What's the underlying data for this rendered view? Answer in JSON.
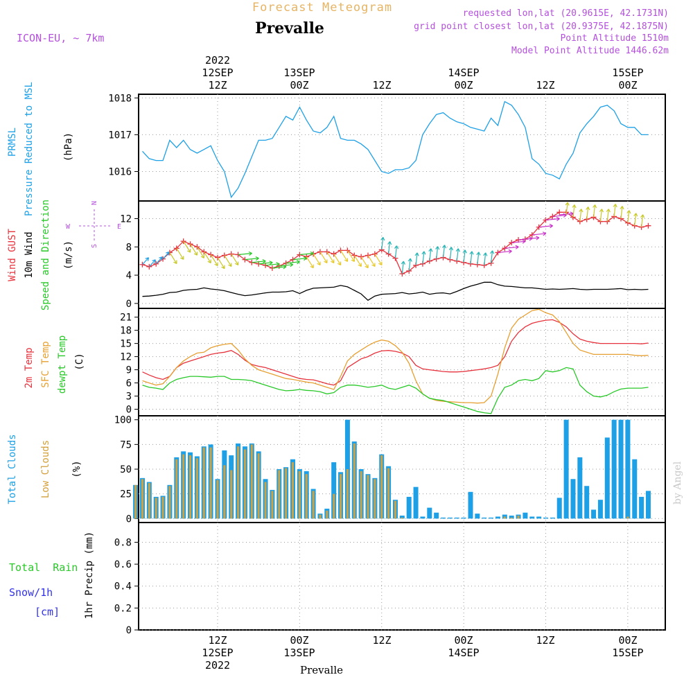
{
  "header": {
    "forecast_title": "Forecast Meteogram",
    "location": "Prevalle",
    "model": "ICON-EU, ~ 7km",
    "requested": "requested lon,lat (20.9615E, 42.1731N)",
    "grid_point": "grid point closest lon,lat (20.9375E, 42.1875N)",
    "point_altitude": "Point Altitude 1510m",
    "model_altitude": "Model Point Altitude 1446.62m"
  },
  "footer": {
    "location": "Prevalle",
    "credit": "by Angel"
  },
  "time_axis": {
    "top_labels": [
      {
        "h": 12,
        "lines": [
          "2022",
          "12SEP",
          "12Z"
        ]
      },
      {
        "h": 24,
        "lines": [
          "13SEP",
          "00Z"
        ]
      },
      {
        "h": 36,
        "lines": [
          "12Z"
        ]
      },
      {
        "h": 48,
        "lines": [
          "14SEP",
          "00Z"
        ]
      },
      {
        "h": 60,
        "lines": [
          "12Z"
        ]
      },
      {
        "h": 72,
        "lines": [
          "15SEP",
          "00Z"
        ]
      }
    ],
    "bottom_labels": [
      {
        "h": 12,
        "lines": [
          "12Z",
          "12SEP",
          "2022"
        ]
      },
      {
        "h": 24,
        "lines": [
          "00Z",
          "13SEP"
        ]
      },
      {
        "h": 36,
        "lines": [
          "12Z"
        ]
      },
      {
        "h": 48,
        "lines": [
          "00Z",
          "14SEP"
        ]
      },
      {
        "h": 60,
        "lines": [
          "12Z"
        ]
      },
      {
        "h": 72,
        "lines": [
          "00Z",
          "15SEP"
        ]
      }
    ]
  },
  "colors": {
    "pressure": "#1ea0e6",
    "gust": "#e6323c",
    "wind": "#000000",
    "temp2m": "#e6323c",
    "sfc": "#e6a032",
    "dewpt": "#28c828",
    "total_cloud": "#1ea0e6",
    "low_cloud": "#d2a03c",
    "rain": "#28c828",
    "snow": "#3232e6",
    "header_purple": "#b450dc",
    "header_orange": "#e6b464"
  },
  "chart_data": [
    {
      "type": "line",
      "panel": "pressure",
      "ylabels": [
        {
          "text": "PRMSL",
          "color": "pressure"
        },
        {
          "text": "Pressure Reduced to MSL",
          "color": "pressure"
        }
      ],
      "unit": "(hPa)",
      "ylim": [
        1015.2,
        1018.1
      ],
      "yticks": [
        1016,
        1017,
        1018
      ],
      "x_start": 1,
      "x_step": 1,
      "series": [
        {
          "color": "pressure",
          "values": [
            1016.55,
            1016.35,
            1016.3,
            1016.3,
            1016.85,
            1016.65,
            1016.85,
            1016.6,
            1016.5,
            1016.6,
            1016.7,
            1016.3,
            1016.0,
            1015.3,
            1015.55,
            1015.95,
            1016.4,
            1016.85,
            1016.85,
            1016.9,
            1017.2,
            1017.5,
            1017.4,
            1017.75,
            1017.4,
            1017.1,
            1017.05,
            1017.2,
            1017.5,
            1016.9,
            1016.85,
            1016.85,
            1016.75,
            1016.6,
            1016.3,
            1016.0,
            1015.95,
            1016.05,
            1016.05,
            1016.1,
            1016.3,
            1017.0,
            1017.3,
            1017.55,
            1017.6,
            1017.45,
            1017.35,
            1017.3,
            1017.2,
            1017.15,
            1017.1,
            1017.45,
            1017.25,
            1017.9,
            1017.8,
            1017.55,
            1017.2,
            1016.35,
            1016.2,
            1015.95,
            1015.9,
            1015.8,
            1016.2,
            1016.5,
            1017.05,
            1017.3,
            1017.5,
            1017.75,
            1017.8,
            1017.65,
            1017.3,
            1017.2,
            1017.2,
            1017.0,
            1017.0
          ]
        }
      ]
    },
    {
      "type": "line",
      "panel": "wind",
      "ylabels": [
        {
          "text": "Wind GUST",
          "color": "gust"
        },
        {
          "text": "10m Wind",
          "color": "wind"
        },
        {
          "text": "Speed and Direction",
          "color": "dewpt"
        }
      ],
      "unit": "(m/s)",
      "compass": [
        "N",
        "W",
        "E",
        "S"
      ],
      "ylim": [
        -0.7,
        14.5
      ],
      "yticks": [
        0,
        4,
        8,
        12
      ],
      "x_start": 1,
      "x_step": 1,
      "series": [
        {
          "name": "Wind GUST",
          "color": "gust",
          "marker": "plus",
          "values": [
            5.5,
            5.2,
            5.6,
            6.3,
            7.2,
            7.8,
            8.8,
            8.4,
            8.0,
            7.3,
            6.9,
            6.5,
            6.8,
            7.0,
            6.9,
            6.2,
            5.8,
            5.6,
            5.4,
            5.0,
            5.3,
            5.7,
            6.2,
            6.9,
            6.6,
            7.0,
            7.3,
            7.3,
            7.0,
            7.5,
            7.5,
            6.8,
            6.6,
            6.8,
            7.0,
            7.6,
            7.0,
            6.4,
            4.2,
            4.6,
            5.4,
            5.6,
            6.0,
            6.3,
            6.5,
            6.2,
            6.0,
            5.8,
            5.6,
            5.5,
            5.4,
            5.7,
            7.2,
            7.8,
            8.6,
            9.0,
            9.1,
            9.7,
            10.8,
            11.8,
            12.3,
            12.9,
            12.9,
            12.2,
            11.6,
            11.9,
            12.2,
            11.6,
            11.6,
            12.3,
            12.0,
            11.4,
            11.0,
            10.8,
            11.0
          ]
        },
        {
          "name": "10m Wind",
          "color": "wind",
          "values": [
            1.0,
            1.05,
            1.15,
            1.3,
            1.55,
            1.6,
            1.85,
            1.95,
            2.0,
            2.2,
            2.05,
            1.95,
            1.8,
            1.55,
            1.3,
            1.1,
            1.2,
            1.35,
            1.5,
            1.6,
            1.6,
            1.65,
            1.8,
            1.4,
            1.85,
            2.15,
            2.2,
            2.25,
            2.3,
            2.55,
            2.35,
            1.85,
            1.35,
            0.45,
            1.05,
            1.3,
            1.35,
            1.4,
            1.55,
            1.35,
            1.45,
            1.6,
            1.3,
            1.45,
            1.5,
            1.35,
            1.7,
            2.1,
            2.45,
            2.7,
            3.0,
            3.0,
            2.65,
            2.45,
            2.4,
            2.3,
            2.2,
            2.2,
            2.1,
            2.0,
            2.05,
            2.0,
            2.05,
            2.1,
            2.0,
            1.95,
            2.0,
            2.0,
            2.0,
            2.05,
            2.1,
            1.95,
            2.0,
            1.95,
            2.0
          ]
        }
      ],
      "arrow_segments": [
        {
          "h1": 1,
          "h2": 4,
          "color": "#1ea0e6",
          "dir": "up-right"
        },
        {
          "h1": 5,
          "h2": 14,
          "color": "#c8c828",
          "dir": "down-right"
        },
        {
          "h1": 15,
          "h2": 24,
          "color": "#28c828",
          "dir": "right"
        },
        {
          "h1": 25,
          "h2": 35,
          "color": "#e6c828",
          "dir": "down-right"
        },
        {
          "h1": 36,
          "h2": 52,
          "color": "#28b4b4",
          "dir": "up"
        },
        {
          "h1": 53,
          "h2": 62,
          "color": "#c832c8",
          "dir": "right"
        },
        {
          "h1": 63,
          "h2": 74,
          "color": "#c8c828",
          "dir": "up"
        }
      ]
    },
    {
      "type": "line",
      "panel": "temperature",
      "ylabels": [
        {
          "text": "2m Temp",
          "color": "temp2m"
        },
        {
          "text": "SFC Temp",
          "color": "sfc"
        },
        {
          "text": "dewpt Temp",
          "color": "dewpt"
        }
      ],
      "unit": "(C)",
      "ylim": [
        -1.5,
        23.0
      ],
      "yticks": [
        0,
        3,
        6,
        9,
        12,
        15,
        18,
        21
      ],
      "x_start": 1,
      "x_step": 1,
      "series": [
        {
          "name": "2m Temp",
          "color": "temp2m",
          "values": [
            8.5,
            7.8,
            7.2,
            6.8,
            7.5,
            9.5,
            10.5,
            11.0,
            11.5,
            12.0,
            12.5,
            12.8,
            13.0,
            13.4,
            12.5,
            11.2,
            10.2,
            9.8,
            9.5,
            9.0,
            8.5,
            8.0,
            7.5,
            7.0,
            6.8,
            6.7,
            6.3,
            5.8,
            5.5,
            6.5,
            9.5,
            10.5,
            11.5,
            12.0,
            12.8,
            13.3,
            13.4,
            13.2,
            12.8,
            12.0,
            10.0,
            9.2,
            9.0,
            8.8,
            8.6,
            8.5,
            8.5,
            8.6,
            8.8,
            9.0,
            9.2,
            9.5,
            10.0,
            12.0,
            15.5,
            17.5,
            18.8,
            19.6,
            20.0,
            20.3,
            20.4,
            19.8,
            18.8,
            17.2,
            16.0,
            15.5,
            15.2,
            15.0,
            15.0,
            15.0,
            15.0,
            15.0,
            15.0,
            14.9,
            15.1
          ]
        },
        {
          "name": "SFC Temp",
          "color": "sfc",
          "values": [
            6.5,
            6.0,
            5.5,
            5.8,
            7.5,
            9.5,
            11.0,
            12.0,
            12.8,
            13.0,
            14.0,
            14.5,
            14.8,
            15.0,
            13.5,
            11.5,
            10.0,
            9.0,
            8.5,
            8.0,
            7.5,
            7.0,
            6.8,
            6.5,
            6.2,
            6.0,
            5.5,
            5.0,
            4.5,
            7.5,
            11.0,
            12.5,
            13.5,
            14.5,
            15.3,
            15.8,
            15.5,
            14.5,
            13.0,
            10.5,
            6.5,
            3.5,
            2.5,
            2.0,
            1.8,
            1.7,
            1.6,
            1.5,
            1.5,
            1.4,
            1.5,
            3.0,
            8.0,
            14.0,
            18.5,
            20.5,
            21.5,
            22.5,
            22.8,
            22.0,
            21.5,
            20.0,
            17.5,
            15.0,
            13.5,
            13.0,
            12.5,
            12.5,
            12.5,
            12.5,
            12.5,
            12.5,
            12.3,
            12.2,
            12.3
          ]
        },
        {
          "name": "dewpt Temp",
          "color": "dewpt",
          "values": [
            5.5,
            5.0,
            4.8,
            4.5,
            6.0,
            6.8,
            7.2,
            7.5,
            7.5,
            7.4,
            7.3,
            7.5,
            7.5,
            6.8,
            6.8,
            6.7,
            6.5,
            6.0,
            5.5,
            5.0,
            4.5,
            4.2,
            4.3,
            4.5,
            4.3,
            4.2,
            4.0,
            3.5,
            3.8,
            5.0,
            5.5,
            5.5,
            5.3,
            5.0,
            5.2,
            5.5,
            4.8,
            4.5,
            5.0,
            5.5,
            4.8,
            3.5,
            2.5,
            2.2,
            2.0,
            1.5,
            1.0,
            0.5,
            0.0,
            -0.5,
            -0.8,
            -1.0,
            2.5,
            5.0,
            5.5,
            6.5,
            6.8,
            6.5,
            7.0,
            8.8,
            8.5,
            8.8,
            9.5,
            9.2,
            5.5,
            4.0,
            3.0,
            2.8,
            3.2,
            4.0,
            4.6,
            4.8,
            4.8,
            4.8,
            5.0
          ]
        }
      ]
    },
    {
      "type": "bar",
      "panel": "clouds",
      "ylabels": [
        {
          "text": "Total Clouds",
          "color": "total_cloud"
        },
        {
          "text": "Low Clouds",
          "color": "low_cloud"
        }
      ],
      "unit": "(%)",
      "ylim": [
        -4,
        104
      ],
      "yticks": [
        0,
        25,
        50,
        75,
        100
      ],
      "x_start": 0,
      "x_step": 1,
      "series": [
        {
          "name": "Total Clouds",
          "color": "total_cloud",
          "values": [
            34,
            41,
            37,
            22,
            23,
            34,
            62,
            68,
            67,
            63,
            73,
            75,
            40,
            69,
            64,
            76,
            73,
            76,
            68,
            40,
            29,
            50,
            52,
            60,
            50,
            48,
            30,
            5,
            10,
            57,
            47,
            100,
            78,
            50,
            45,
            41,
            65,
            53,
            19,
            3,
            22,
            32,
            2,
            11,
            6,
            1,
            1,
            1,
            1,
            27,
            5,
            1,
            1,
            2,
            4,
            3,
            4,
            6,
            2,
            2,
            1,
            1,
            21,
            100,
            40,
            62,
            33,
            9,
            19,
            82,
            100,
            100,
            100,
            60,
            22,
            28
          ]
        },
        {
          "name": "Low Clouds",
          "color": "low_cloud",
          "values": [
            34,
            40,
            36,
            21,
            22,
            33,
            60,
            65,
            64,
            61,
            72,
            72,
            39,
            54,
            49,
            73,
            70,
            75,
            66,
            37,
            28,
            49,
            51,
            57,
            48,
            45,
            28,
            4,
            8,
            25,
            45,
            50,
            76,
            48,
            44,
            40,
            64,
            51,
            18,
            1,
            0,
            0,
            0,
            0,
            0,
            0,
            0,
            0,
            0,
            0,
            0,
            0,
            0,
            0,
            2,
            1,
            3,
            0,
            0,
            0,
            0,
            0,
            0,
            0,
            0,
            0,
            0,
            0,
            0,
            0,
            0,
            0,
            2,
            0,
            0,
            0
          ]
        }
      ]
    },
    {
      "type": "bar",
      "panel": "precip",
      "ylabels": [
        {
          "text": "Total  Rain",
          "color": "rain"
        },
        {
          "text": "Snow/1h",
          "color": "snow"
        },
        {
          "text": "[cm]",
          "color": "snow"
        }
      ],
      "unit": "1hr Precip (mm)",
      "ylim": [
        0,
        0.98
      ],
      "yticks": [
        0,
        0.2,
        0.4,
        0.6,
        0.8
      ],
      "x_start": 0,
      "x_step": 1,
      "series": [
        {
          "name": "Total Rain",
          "color": "rain",
          "values": []
        }
      ]
    }
  ]
}
